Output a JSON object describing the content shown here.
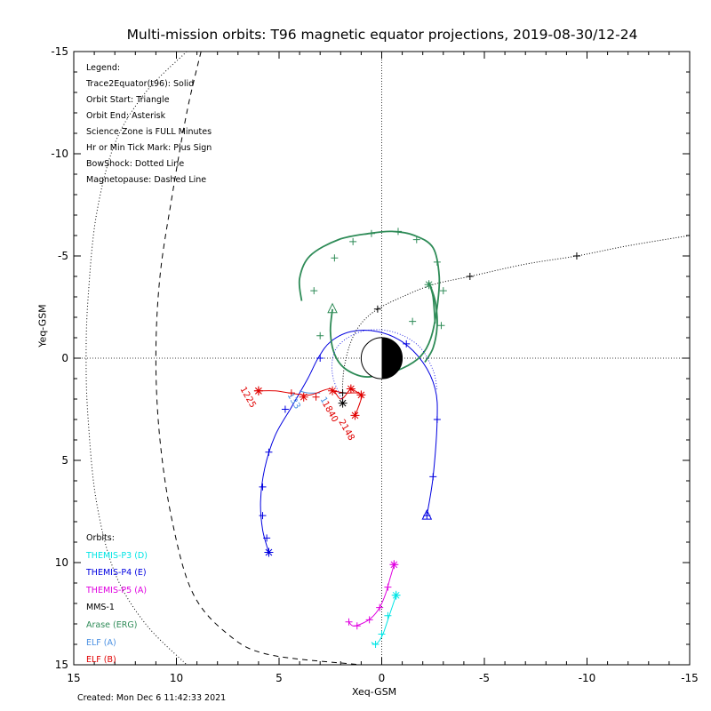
{
  "chart_data": {
    "type": "line",
    "title": "Multi-mission orbits: T96 magnetic equator projections, 2019-08-30/12-24",
    "xlabel": "Xeq-GSM",
    "ylabel": "Yeq-GSM",
    "xlim": [
      15,
      -15
    ],
    "ylim": [
      -15,
      15
    ],
    "x_ticks": [
      "15",
      "10",
      "5",
      "0",
      "-5",
      "-10",
      "-15"
    ],
    "y_ticks": [
      "-15",
      "-10",
      "-5",
      "0",
      "5",
      "10",
      "15"
    ],
    "legend": {
      "header": "Legend:",
      "items": [
        "Trace2Equator(t96): Solid",
        "Orbit Start: Triangle",
        "Orbit End: Asterisk",
        "Science Zone is FULL Minutes",
        "Hr or Min Tick Mark: Plus Sign",
        "BowShock: Dotted Line",
        "Magnetopause: Dashed Line"
      ]
    },
    "orbits": {
      "header": "Orbits:",
      "items": [
        {
          "name": "THEMIS-P3 (D)",
          "color": "#00e5e5"
        },
        {
          "name": "THEMIS-P4 (E)",
          "color": "#0000e0"
        },
        {
          "name": "THEMIS-P5 (A)",
          "color": "#e000e0"
        },
        {
          "name": "MMS-1",
          "color": "#000000"
        },
        {
          "name": "Arase (ERG)",
          "color": "#2e8b57"
        },
        {
          "name": "ELF (A)",
          "color": "#4a90e2"
        },
        {
          "name": "ELF (B)",
          "color": "#e00000"
        }
      ]
    },
    "bowshock": [
      [
        9.5,
        -15
      ],
      [
        11.5,
        -13
      ],
      [
        13,
        -10.5
      ],
      [
        13.9,
        -7
      ],
      [
        14.3,
        -3
      ],
      [
        14.4,
        0
      ],
      [
        14.3,
        3
      ],
      [
        13.9,
        7
      ],
      [
        13,
        10.5
      ],
      [
        11.5,
        13
      ],
      [
        9.5,
        15
      ]
    ],
    "magnetopause": [
      [
        8.8,
        -15
      ],
      [
        9.5,
        -12
      ],
      [
        10.2,
        -8
      ],
      [
        10.8,
        -4
      ],
      [
        11,
        0
      ],
      [
        10.8,
        4
      ],
      [
        10.2,
        8
      ],
      [
        9.2,
        11.5
      ],
      [
        7.5,
        13.5
      ],
      [
        5.5,
        14.5
      ],
      [
        1,
        15
      ]
    ],
    "series": [
      {
        "name": "THEMIS-P4 (E)",
        "color": "#0000e0",
        "trace": [
          [
            -2.2,
            7.7
          ],
          [
            -2.5,
            5.8
          ],
          [
            -2.7,
            3.0
          ],
          [
            -2.6,
            1.5
          ],
          [
            -2.0,
            0.2
          ],
          [
            -1.0,
            -0.8
          ],
          [
            0.2,
            -1.3
          ],
          [
            1.5,
            -1.3
          ],
          [
            2.5,
            -0.8
          ],
          [
            3.1,
            0.0
          ],
          [
            3.6,
            1.0
          ],
          [
            4.4,
            2.4
          ],
          [
            5.2,
            3.8
          ],
          [
            5.7,
            5.4
          ],
          [
            5.9,
            7.0
          ],
          [
            5.8,
            8.4
          ],
          [
            5.5,
            9.5
          ]
        ],
        "ticks": [
          [
            -2.2,
            7.7
          ],
          [
            -2.5,
            5.8
          ],
          [
            -2.7,
            3.0
          ],
          [
            -1.2,
            -0.7
          ],
          [
            3.0,
            0.0
          ],
          [
            4.7,
            2.5
          ],
          [
            5.5,
            4.6
          ],
          [
            5.8,
            6.3
          ],
          [
            5.8,
            7.7
          ],
          [
            5.6,
            8.8
          ],
          [
            5.5,
            9.5
          ]
        ],
        "start": [
          -2.2,
          7.7
        ],
        "end": [
          5.5,
          9.5
        ]
      },
      {
        "name": "THEMIS-P5 (A)",
        "color": "#e000e0",
        "trace": [
          [
            -0.6,
            10.1
          ],
          [
            -0.4,
            10.8
          ],
          [
            -0.2,
            11.5
          ],
          [
            0.1,
            12.2
          ],
          [
            0.5,
            12.7
          ],
          [
            1.0,
            13.0
          ],
          [
            1.4,
            13.1
          ],
          [
            1.6,
            12.9
          ]
        ],
        "ticks": [
          [
            -0.6,
            10.1
          ],
          [
            -0.3,
            11.2
          ],
          [
            0.1,
            12.2
          ],
          [
            0.6,
            12.8
          ],
          [
            1.2,
            13.1
          ],
          [
            1.6,
            12.9
          ]
        ],
        "start": null,
        "end": [
          -0.6,
          10.1
        ]
      },
      {
        "name": "THEMIS-P3 (D)",
        "color": "#00e5e5",
        "trace": [
          [
            -0.7,
            11.6
          ],
          [
            -0.4,
            12.5
          ],
          [
            -0.1,
            13.4
          ],
          [
            0.1,
            13.8
          ],
          [
            0.3,
            14.0
          ],
          [
            0.5,
            13.9
          ]
        ],
        "ticks": [
          [
            -0.7,
            11.6
          ],
          [
            -0.3,
            12.6
          ],
          [
            0.0,
            13.5
          ],
          [
            0.3,
            14.0
          ]
        ],
        "start": null,
        "end": [
          -0.7,
          11.6
        ]
      },
      {
        "name": "MMS-1",
        "color": "#000000",
        "trace": [
          [
            -15,
            -6.0
          ],
          [
            -12,
            -5.5
          ],
          [
            -9.5,
            -5.0
          ],
          [
            -7,
            -4.6
          ],
          [
            -4.3,
            -4.0
          ],
          [
            -2.5,
            -3.6
          ],
          [
            -1.0,
            -3.0
          ],
          [
            0.2,
            -2.4
          ],
          [
            1.0,
            -1.7
          ],
          [
            1.5,
            -0.8
          ],
          [
            1.8,
            0.3
          ],
          [
            1.9,
            1.2
          ],
          [
            1.9,
            2.1
          ]
        ],
        "ticks": [
          [
            -9.5,
            -5.0
          ],
          [
            -4.3,
            -4.0
          ],
          [
            0.2,
            -2.4
          ],
          [
            1.9,
            1.7
          ]
        ],
        "start": null,
        "end": [
          1.9,
          2.2
        ]
      },
      {
        "name": "Arase (ERG)",
        "color": "#2e8b57",
        "trace": [
          [
            2.4,
            -2.4
          ],
          [
            2.5,
            -1.3
          ],
          [
            2.3,
            -0.2
          ],
          [
            1.8,
            0.5
          ],
          [
            0.9,
            0.9
          ],
          [
            0,
            0.8
          ],
          [
            -1.0,
            0.5
          ],
          [
            -1.9,
            -0.1
          ],
          [
            -2.4,
            -1.0
          ],
          [
            -2.7,
            -2.5
          ],
          [
            -2.8,
            -4.0
          ],
          [
            -2.5,
            -5.4
          ],
          [
            -1.6,
            -6.0
          ],
          [
            -0.5,
            -6.2
          ],
          [
            0.6,
            -6.1
          ],
          [
            2.1,
            -5.8
          ],
          [
            3.5,
            -5.0
          ],
          [
            4.0,
            -3.9
          ],
          [
            3.9,
            -2.8
          ]
        ],
        "loop2": [
          [
            -2.6,
            -1.7
          ],
          [
            -2.5,
            -3.0
          ],
          [
            -2.3,
            -3.7
          ],
          [
            -2.6,
            -2.8
          ],
          [
            -2.7,
            -1.6
          ],
          [
            -2.5,
            -0.5
          ],
          [
            -2.1,
            0.2
          ]
        ],
        "ticks": [
          [
            -0.8,
            -6.2
          ],
          [
            -1.7,
            -5.8
          ],
          [
            -2.7,
            -4.7
          ],
          [
            -3.0,
            -3.3
          ],
          [
            3.0,
            -1.1
          ],
          [
            3.3,
            -3.3
          ],
          [
            2.3,
            -4.9
          ],
          [
            1.4,
            -5.7
          ],
          [
            0.5,
            -6.1
          ],
          [
            -1.5,
            -1.8
          ],
          [
            -2.9,
            -1.6
          ]
        ],
        "start": [
          2.4,
          -2.4
        ],
        "end": [
          -2.3,
          -3.6
        ]
      },
      {
        "name": "ELF (A)",
        "color": "#4a90e2",
        "trace": [
          [
            3.0,
            1.7
          ],
          [
            3.6,
            1.7
          ],
          [
            4.0,
            1.6
          ]
        ],
        "ticks": [],
        "start": null,
        "end": null
      },
      {
        "name": "ELF (B)",
        "color": "#e00000",
        "trace": [
          [
            6.0,
            1.6
          ],
          [
            5.2,
            1.6
          ],
          [
            4.5,
            1.7
          ],
          [
            3.5,
            1.8
          ],
          [
            2.5,
            1.5
          ],
          [
            2.0,
            2.0
          ],
          [
            1.6,
            1.6
          ],
          [
            1.5,
            1.5
          ],
          [
            1.0,
            1.8
          ],
          [
            1.0,
            2.0
          ],
          [
            1.3,
            2.8
          ],
          [
            1.0,
            1.8
          ],
          [
            1.8,
            1.7
          ],
          [
            2.4,
            1.6
          ]
        ],
        "ticks": [
          [
            4.4,
            1.7
          ],
          [
            3.2,
            1.9
          ],
          [
            1.5,
            1.5
          ],
          [
            1.0,
            1.8
          ]
        ],
        "stars": [
          [
            6.0,
            1.6
          ],
          [
            3.8,
            1.9
          ],
          [
            2.4,
            1.6
          ],
          [
            1.5,
            1.5
          ],
          [
            1.3,
            2.8
          ],
          [
            1.0,
            1.8
          ]
        ],
        "start": null,
        "end": [
          6.0,
          1.6
        ]
      }
    ],
    "annotations": [
      {
        "text": "1225",
        "x": 6.9,
        "y": 1.5,
        "color": "#e00000"
      },
      {
        "text": "1840",
        "x": 2.9,
        "y": 2.2,
        "color": "#e00000"
      },
      {
        "text": "2148",
        "x": 2.1,
        "y": 3.1,
        "color": "#e00000"
      },
      {
        "text": "133",
        "x": 4.6,
        "y": 1.8,
        "color": "#4a90e2"
      },
      {
        "text": "1",
        "x": 3.0,
        "y": 2.0,
        "color": "#4a90e2"
      }
    ]
  },
  "footer": {
    "created": "Created: Mon Dec  6 11:42:33 2021"
  }
}
